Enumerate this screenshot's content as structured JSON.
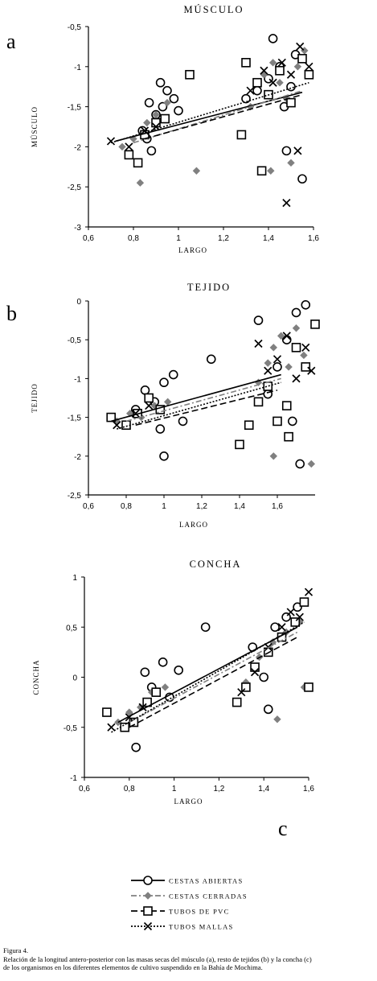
{
  "chart_data": [
    {
      "type": "scatter",
      "panel_letter": "a",
      "title": "MÚSCULO",
      "xlabel": "LARGO",
      "ylabel": "MÚSCULO",
      "xlim": [
        0.6,
        1.6
      ],
      "ylim": [
        -3,
        -0.5
      ],
      "xticks": [
        0.6,
        0.8,
        1.0,
        1.2,
        1.4,
        1.6
      ],
      "xtick_labels": [
        "0,6",
        "0,8",
        "1",
        "1,2",
        "1,4",
        "1,6"
      ],
      "yticks": [
        -0.5,
        -1,
        -1.5,
        -2,
        -2.5,
        -3
      ],
      "ytick_labels": [
        "-0,5",
        "-1",
        "-1,5",
        "-2",
        "-2,5",
        "-3"
      ],
      "series": [
        {
          "name": "CESTAS ABIERTAS",
          "marker": "circle",
          "color": "#000000",
          "line_style": "solid",
          "x": [
            0.84,
            0.87,
            0.88,
            0.9,
            0.93,
            0.95,
            0.98,
            1.0,
            0.86,
            0.92,
            1.3,
            1.35,
            1.4,
            1.42,
            1.45,
            1.48,
            1.5,
            1.52,
            1.55,
            1.47
          ],
          "y": [
            -1.8,
            -1.45,
            -2.05,
            -1.6,
            -1.5,
            -1.3,
            -1.4,
            -1.55,
            -1.9,
            -1.2,
            -1.4,
            -1.3,
            -1.15,
            -0.65,
            -1.0,
            -2.05,
            -1.25,
            -0.85,
            -2.4,
            -1.5
          ]
        },
        {
          "name": "CESTAS CERRADAS",
          "marker": "diamond",
          "color": "#808080",
          "line_style": "dash-dot",
          "x": [
            0.75,
            0.8,
            0.83,
            0.86,
            0.9,
            0.95,
            1.08,
            1.32,
            1.38,
            1.42,
            1.45,
            1.48,
            1.5,
            1.53,
            1.56,
            1.41
          ],
          "y": [
            -2.0,
            -1.9,
            -2.45,
            -1.7,
            -1.6,
            -1.45,
            -2.3,
            -1.5,
            -1.1,
            -0.95,
            -1.2,
            -1.4,
            -2.2,
            -1.0,
            -0.8,
            -2.3
          ]
        },
        {
          "name": "TUBOS DE PVC",
          "marker": "square",
          "color": "#000000",
          "line_style": "long-dash",
          "x": [
            0.78,
            0.82,
            0.85,
            0.9,
            0.94,
            1.05,
            1.28,
            1.3,
            1.35,
            1.4,
            1.45,
            1.5,
            1.55,
            1.37,
            1.58
          ],
          "y": [
            -2.1,
            -2.2,
            -1.85,
            -1.7,
            -1.65,
            -1.1,
            -1.85,
            -0.95,
            -1.2,
            -1.35,
            -1.05,
            -1.45,
            -0.9,
            -2.3,
            -1.1
          ]
        },
        {
          "name": "TUBOS MALLAS",
          "marker": "x",
          "color": "#000000",
          "line_style": "dotted",
          "x": [
            0.7,
            0.78,
            0.85,
            0.9,
            1.32,
            1.38,
            1.42,
            1.46,
            1.5,
            1.54,
            1.58,
            1.48,
            1.53
          ],
          "y": [
            -1.93,
            -2.0,
            -1.8,
            -1.75,
            -1.3,
            -1.05,
            -1.2,
            -0.95,
            -1.1,
            -0.75,
            -1.0,
            -2.7,
            -2.05
          ]
        }
      ],
      "trend_lines": [
        {
          "series": "CESTAS ABIERTAS",
          "x": [
            0.72,
            1.55
          ],
          "y": [
            -1.93,
            -1.32
          ]
        },
        {
          "series": "CESTAS CERRADAS",
          "x": [
            0.8,
            1.55
          ],
          "y": [
            -1.95,
            -1.3
          ]
        },
        {
          "series": "TUBOS DE PVC",
          "x": [
            0.85,
            1.55
          ],
          "y": [
            -1.9,
            -1.35
          ]
        },
        {
          "series": "TUBOS MALLAS",
          "x": [
            0.7,
            1.58
          ],
          "y": [
            -1.95,
            -1.2
          ]
        }
      ],
      "grid": false,
      "legend": "none"
    },
    {
      "type": "scatter",
      "panel_letter": "b",
      "title": "TEJIDO",
      "xlabel": "LARGO",
      "ylabel": "TEJIDO",
      "xlim": [
        0.6,
        1.8
      ],
      "ylim": [
        -2.5,
        0
      ],
      "xticks": [
        0.6,
        0.8,
        1.0,
        1.2,
        1.4,
        1.6
      ],
      "xtick_labels": [
        "0,6",
        "0,8",
        "1",
        "1,2",
        "1,4",
        "1,6"
      ],
      "yticks": [
        0,
        -0.5,
        -1,
        -1.5,
        -2,
        -2.5
      ],
      "ytick_labels": [
        "0",
        "-0,5",
        "-1",
        "-1,5",
        "-2",
        "-2,5"
      ],
      "series": [
        {
          "name": "CESTAS ABIERTAS",
          "marker": "circle",
          "color": "#000000",
          "line_style": "solid",
          "x": [
            0.85,
            0.9,
            0.95,
            1.0,
            1.05,
            1.1,
            0.98,
            1.0,
            1.25,
            1.5,
            1.55,
            1.6,
            1.65,
            1.7,
            1.75,
            1.72,
            1.68
          ],
          "y": [
            -1.4,
            -1.15,
            -1.3,
            -1.05,
            -0.95,
            -1.55,
            -1.65,
            -2.0,
            -0.75,
            -0.25,
            -1.2,
            -0.85,
            -0.5,
            -0.15,
            -0.05,
            -2.1,
            -1.55
          ]
        },
        {
          "name": "CESTAS CERRADAS",
          "marker": "diamond",
          "color": "#808080",
          "line_style": "dash-dot",
          "x": [
            0.75,
            0.82,
            0.88,
            0.95,
            1.02,
            1.5,
            1.55,
            1.58,
            1.62,
            1.66,
            1.7,
            1.74,
            1.78,
            1.58
          ],
          "y": [
            -1.55,
            -1.45,
            -1.5,
            -1.35,
            -1.3,
            -1.05,
            -0.8,
            -0.6,
            -0.45,
            -0.85,
            -0.35,
            -0.7,
            -2.1,
            -2.0
          ]
        },
        {
          "name": "TUBOS DE PVC",
          "marker": "square",
          "color": "#000000",
          "line_style": "long-dash",
          "x": [
            0.72,
            0.8,
            0.86,
            0.92,
            0.98,
            1.4,
            1.45,
            1.5,
            1.55,
            1.6,
            1.65,
            1.7,
            1.75,
            1.8,
            1.66
          ],
          "y": [
            -1.5,
            -1.6,
            -1.45,
            -1.25,
            -1.4,
            -1.85,
            -1.6,
            -1.3,
            -1.1,
            -1.55,
            -1.35,
            -0.6,
            -0.85,
            -0.3,
            -1.75
          ]
        },
        {
          "name": "TUBOS MALLAS",
          "marker": "x",
          "color": "#000000",
          "line_style": "dotted",
          "x": [
            0.75,
            0.85,
            0.92,
            1.5,
            1.55,
            1.6,
            1.65,
            1.7,
            1.75,
            1.78
          ],
          "y": [
            -1.6,
            -1.45,
            -1.35,
            -0.55,
            -0.9,
            -0.75,
            -0.45,
            -1.0,
            -0.6,
            -0.9
          ]
        }
      ],
      "trend_lines": [
        {
          "series": "CESTAS ABIERTAS",
          "x": [
            0.72,
            1.62
          ],
          "y": [
            -1.55,
            -0.95
          ]
        },
        {
          "series": "CESTAS CERRADAS",
          "x": [
            0.8,
            1.62
          ],
          "y": [
            -1.55,
            -1.0
          ]
        },
        {
          "series": "TUBOS DE PVC",
          "x": [
            0.85,
            1.6
          ],
          "y": [
            -1.6,
            -1.15
          ]
        },
        {
          "series": "TUBOS MALLAS",
          "x": [
            0.75,
            1.62
          ],
          "y": [
            -1.65,
            -1.05
          ]
        }
      ],
      "grid": false,
      "legend": "none"
    },
    {
      "type": "scatter",
      "panel_letter": "c",
      "title": "CONCHA",
      "xlabel": "LARGO",
      "ylabel": "CONCHA",
      "xlim": [
        0.6,
        1.6
      ],
      "ylim": [
        -1,
        1
      ],
      "xticks": [
        0.6,
        0.8,
        1.0,
        1.2,
        1.4,
        1.6
      ],
      "xtick_labels": [
        "0,6",
        "0,8",
        "1",
        "1,2",
        "1,4",
        "1,6"
      ],
      "yticks": [
        1,
        0.5,
        0,
        -0.5,
        -1
      ],
      "ytick_labels": [
        "1",
        "0,5",
        "0",
        "-0,5",
        "-1"
      ],
      "series": [
        {
          "name": "CESTAS ABIERTAS",
          "marker": "circle",
          "color": "#000000",
          "line_style": "solid",
          "x": [
            0.83,
            0.87,
            0.9,
            0.95,
            0.98,
            1.02,
            1.14,
            1.35,
            1.4,
            1.45,
            1.5,
            1.55,
            1.42
          ],
          "y": [
            -0.7,
            0.05,
            -0.1,
            0.15,
            -0.2,
            0.07,
            0.5,
            0.3,
            0.0,
            0.5,
            0.6,
            0.7,
            -0.32
          ]
        },
        {
          "name": "CESTAS CERRADAS",
          "marker": "diamond",
          "color": "#808080",
          "line_style": "dash-dot",
          "x": [
            0.75,
            0.8,
            0.85,
            0.9,
            0.96,
            1.32,
            1.38,
            1.44,
            1.5,
            1.56,
            1.58,
            1.46
          ],
          "y": [
            -0.45,
            -0.35,
            -0.3,
            -0.15,
            -0.1,
            -0.05,
            0.2,
            0.35,
            0.45,
            0.55,
            -0.1,
            -0.42
          ]
        },
        {
          "name": "TUBOS DE PVC",
          "marker": "square",
          "color": "#000000",
          "line_style": "long-dash",
          "x": [
            0.7,
            0.78,
            0.82,
            0.88,
            0.92,
            1.28,
            1.32,
            1.36,
            1.42,
            1.48,
            1.54,
            1.58,
            1.6
          ],
          "y": [
            -0.35,
            -0.5,
            -0.45,
            -0.25,
            -0.15,
            -0.25,
            -0.1,
            0.1,
            0.25,
            0.4,
            0.55,
            0.75,
            -0.1
          ]
        },
        {
          "name": "TUBOS MALLAS",
          "marker": "x",
          "color": "#000000",
          "line_style": "dotted",
          "x": [
            0.72,
            0.8,
            0.86,
            1.3,
            1.36,
            1.42,
            1.48,
            1.52,
            1.56,
            1.6
          ],
          "y": [
            -0.5,
            -0.4,
            -0.3,
            -0.15,
            0.05,
            0.3,
            0.5,
            0.65,
            0.6,
            0.85
          ]
        }
      ],
      "trend_lines": [
        {
          "series": "CESTAS ABIERTAS",
          "x": [
            0.75,
            1.55
          ],
          "y": [
            -0.45,
            0.5
          ]
        },
        {
          "series": "CESTAS CERRADAS",
          "x": [
            0.8,
            1.55
          ],
          "y": [
            -0.45,
            0.45
          ]
        },
        {
          "series": "TUBOS DE PVC",
          "x": [
            0.8,
            1.55
          ],
          "y": [
            -0.5,
            0.4
          ]
        },
        {
          "series": "TUBOS MALLAS",
          "x": [
            0.72,
            1.58
          ],
          "y": [
            -0.55,
            0.55
          ]
        }
      ],
      "grid": false,
      "legend": "none"
    }
  ],
  "legend_entries": [
    {
      "label": "CESTAS ABIERTAS",
      "marker": "circle",
      "color": "#000000",
      "line_style": "solid"
    },
    {
      "label": "CESTAS CERRADAS",
      "marker": "diamond",
      "color": "#808080",
      "line_style": "dash-dot"
    },
    {
      "label": "TUBOS DE PVC",
      "marker": "square",
      "color": "#000000",
      "line_style": "long-dash"
    },
    {
      "label": "TUBOS MALLAS",
      "marker": "x",
      "color": "#000000",
      "line_style": "dotted"
    }
  ],
  "caption": {
    "figure_label": "Figura 4.",
    "line1": "Relación de la longitud antero-posterior con las masas secas del músculo (a), resto de tejidos (b) y la concha (c)",
    "line2": " de los organismos en los diferentes elementos de cultivo suspendido en la Bahía de Mochima."
  }
}
